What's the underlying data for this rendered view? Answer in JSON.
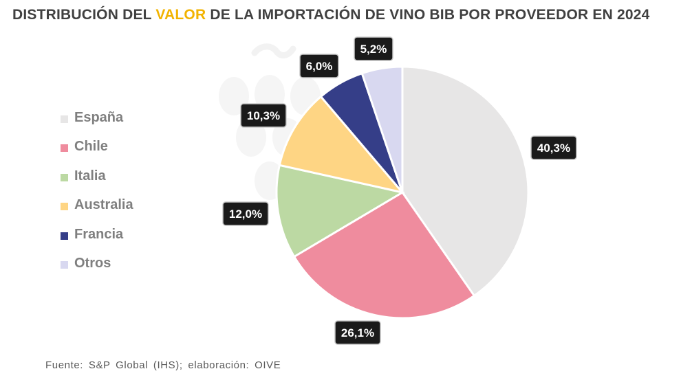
{
  "title": {
    "before": "DISTRIBUCIÓN DEL",
    "highlight": "VALOR",
    "after": "DE LA IMPORTACIÓN DE VINO BIB POR PROVEEDOR EN 2024",
    "highlight_color": "#f2b300"
  },
  "source": "Fuente: S&P Global (IHS); elaboración: OIVE",
  "chart_data": {
    "type": "pie",
    "title": "DISTRIBUCIÓN DEL VALOR DE LA IMPORTACIÓN DE VINO BIB POR PROVEEDOR EN 2024",
    "unit": "%",
    "legend_position": "left",
    "start_angle": "top",
    "direction": "clockwise",
    "slices": [
      {
        "label": "España",
        "value": 40.3,
        "value_label": "40,3%",
        "color": "#e7e6e6"
      },
      {
        "label": "Chile",
        "value": 26.1,
        "value_label": "26,1%",
        "color": "#ef8c9e"
      },
      {
        "label": "Italia",
        "value": 12.0,
        "value_label": "12,0%",
        "color": "#bcd9a3"
      },
      {
        "label": "Australia",
        "value": 10.3,
        "value_label": "10,3%",
        "color": "#fed584"
      },
      {
        "label": "Francia",
        "value": 6.0,
        "value_label": "6,0%",
        "color": "#353e88"
      },
      {
        "label": "Otros",
        "value": 5.2,
        "value_label": "5,2%",
        "color": "#d8d8f0"
      }
    ]
  }
}
